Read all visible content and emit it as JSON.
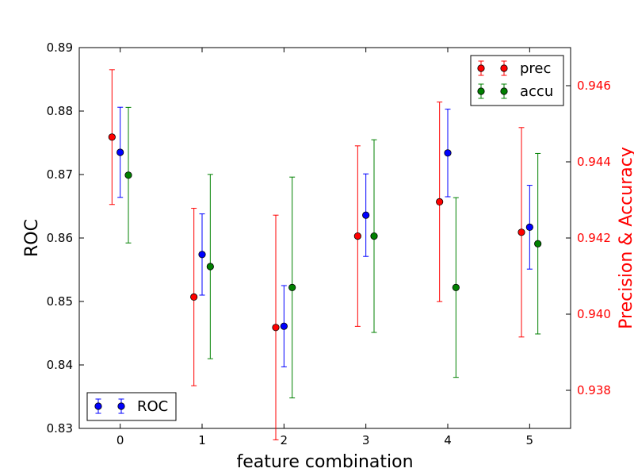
{
  "chart_data": {
    "type": "scatter",
    "xlabel": "feature combination",
    "ylabel_left": "ROC",
    "ylabel_right": "Precision & Accuracy",
    "x_ticks": [
      0,
      1,
      2,
      3,
      4,
      5
    ],
    "xlim": [
      -0.5,
      5.5
    ],
    "ylim_left": [
      0.83,
      0.89
    ],
    "yticks_left": [
      "0.83",
      "0.84",
      "0.85",
      "0.86",
      "0.87",
      "0.88",
      "0.89"
    ],
    "ylim_right": [
      0.937,
      0.947
    ],
    "yticks_right": [
      "0.938",
      "0.940",
      "0.942",
      "0.944",
      "0.946"
    ],
    "grid": false,
    "colors": {
      "prec": "#ff0000",
      "accu": "#008000",
      "roc": "#0000ff",
      "right_axis": "#ff0000"
    },
    "legend_right": {
      "placement": "top-right",
      "entries": [
        "prec",
        "accu"
      ]
    },
    "legend_left": {
      "placement": "bottom-left",
      "entries": [
        "ROC"
      ]
    },
    "series": [
      {
        "name": "ROC",
        "axis": "left",
        "color": "#0000ff",
        "x_offset": 0,
        "x": [
          0,
          1,
          2,
          3,
          4,
          5
        ],
        "y": [
          0.8735,
          0.8574,
          0.8461,
          0.8636,
          0.8734,
          0.8617
        ],
        "err": [
          0.0071,
          0.0064,
          0.0064,
          0.0065,
          0.0069,
          0.0066
        ]
      },
      {
        "name": "prec",
        "axis": "right",
        "color": "#ff0000",
        "x_offset": -0.1,
        "x": [
          0,
          1,
          2,
          3,
          4,
          5
        ],
        "y": [
          0.94465,
          0.94045,
          0.93965,
          0.94205,
          0.94295,
          0.94215
        ],
        "err": [
          0.00177,
          0.00233,
          0.00295,
          0.00237,
          0.00262,
          0.00275
        ]
      },
      {
        "name": "accu",
        "axis": "right",
        "color": "#008000",
        "x_offset": 0.1,
        "x": [
          0,
          1,
          2,
          3,
          4,
          5
        ],
        "y": [
          0.94365,
          0.94125,
          0.9407,
          0.94205,
          0.9407,
          0.94185
        ],
        "err": [
          0.00178,
          0.00242,
          0.0029,
          0.00253,
          0.00236,
          0.00237
        ]
      }
    ]
  }
}
